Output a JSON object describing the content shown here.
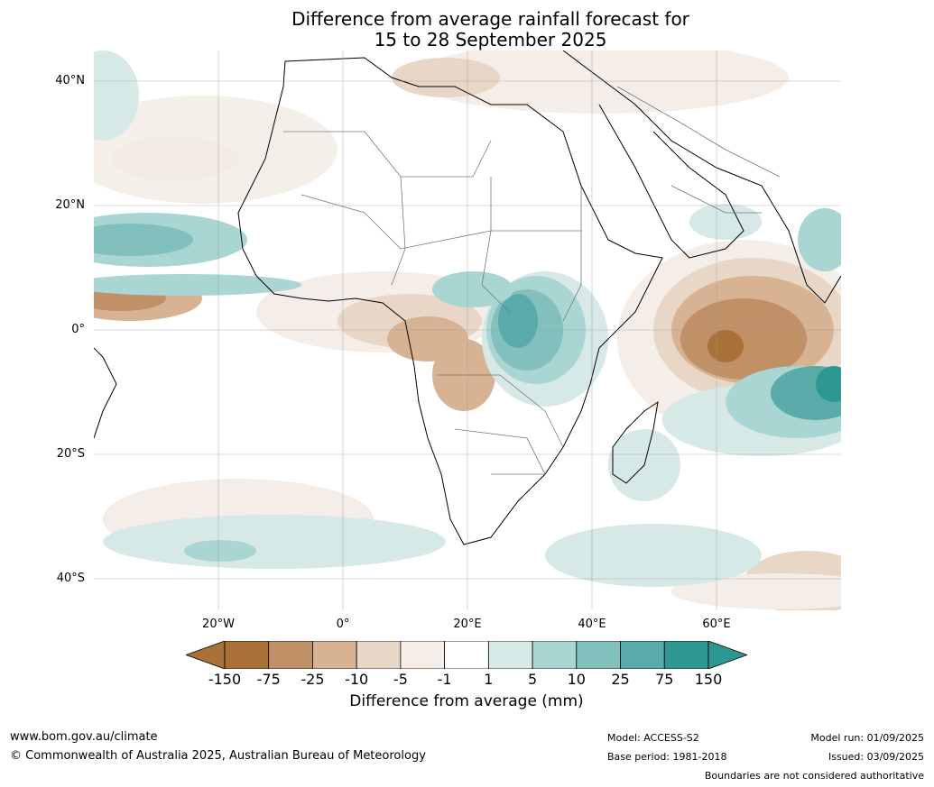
{
  "title": {
    "line1": "Difference from average rainfall forecast for",
    "line2": "15 to 28 September 2025"
  },
  "map": {
    "lat_labels": [
      "40°N",
      "20°N",
      "0°",
      "20°S",
      "40°S"
    ],
    "lon_labels": [
      "20°W",
      "0°",
      "20°E",
      "40°E",
      "60°E"
    ]
  },
  "legend": {
    "title": "Difference from average (mm)",
    "ticks": [
      "-150",
      "-75",
      "-25",
      "-10",
      "-5",
      "-1",
      "1",
      "5",
      "10",
      "25",
      "75",
      "150"
    ],
    "colors": [
      "#a97037",
      "#c09066",
      "#d7b394",
      "#e8d6c6",
      "#f4ede8",
      "#ffffff",
      "#d6e9e7",
      "#a9d5d2",
      "#82c0bd",
      "#5aaba8",
      "#2e9792"
    ],
    "extend_low_color": "#a97037",
    "extend_high_color": "#2e9792"
  },
  "footer": {
    "url": "www.bom.gov.au/climate",
    "copyright": "© Commonwealth of Australia 2025, Australian Bureau of Meteorology",
    "model": "Model: ACCESS-S2",
    "base_period": "Base period: 1981-2018",
    "model_run": "Model run: 01/09/2025",
    "issued": "Issued: 03/09/2025",
    "disclaimer": "Boundaries are not considered authoritative"
  }
}
